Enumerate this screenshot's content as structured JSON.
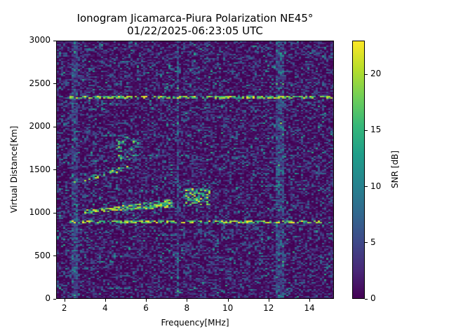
{
  "chart_data": {
    "type": "heatmap",
    "title": "Ionogram Jicamarca-Piura Polarization NE45°",
    "subtitle": "01/22/2025-06:23:05 UTC",
    "xlabel": "Frequency[MHz]",
    "ylabel": "Virtual Distance[Km]",
    "xlim": [
      1.6,
      15.2
    ],
    "ylim": [
      0,
      3000
    ],
    "xticks": [
      2,
      4,
      6,
      8,
      10,
      12,
      14
    ],
    "yticks": [
      0,
      500,
      1000,
      1500,
      2000,
      2500,
      3000
    ],
    "colorbar": {
      "label": "SNR [dB]",
      "range": [
        0,
        23
      ],
      "ticks": [
        0,
        5,
        10,
        15,
        20
      ],
      "colormap": "viridis"
    },
    "grid": false,
    "features": [
      {
        "name": "first-hop trace",
        "freq_range_mhz": [
          2.9,
          7.3
        ],
        "distance_km": [
          1020,
          1120
        ],
        "snr_db": "15-23"
      },
      {
        "name": "second-hop trace",
        "freq_range_mhz": [
          2.8,
          5.3
        ],
        "distance_km": [
          1380,
          1550
        ],
        "snr_db": "8-20"
      },
      {
        "name": "higher-order scatter",
        "freq_range_mhz": [
          4.5,
          5.6
        ],
        "distance_km": [
          1600,
          1900
        ],
        "snr_db": "8-20"
      },
      {
        "name": "echo cluster",
        "freq_range_mhz": [
          7.9,
          9.1
        ],
        "distance_km": [
          1100,
          1300
        ],
        "snr_db": "15-23"
      },
      {
        "name": "horizontal interference line",
        "freq_range_mhz": [
          2.2,
          15.2
        ],
        "distance_km": [
          2350,
          2350
        ],
        "snr_db": "20-23"
      },
      {
        "name": "horizontal interference line",
        "freq_range_mhz": [
          2.2,
          14.6
        ],
        "distance_km": [
          900,
          900
        ],
        "snr_db": "10-20"
      },
      {
        "name": "vertical noise band",
        "freq_range_mhz": [
          2.3,
          2.6
        ],
        "distance_km": [
          0,
          3000
        ],
        "snr_db": "3-10"
      },
      {
        "name": "vertical noise band",
        "freq_range_mhz": [
          12.3,
          12.7
        ],
        "distance_km": [
          0,
          3000
        ],
        "snr_db": "3-10"
      },
      {
        "name": "vertical noise line",
        "freq_range_mhz": [
          7.5,
          7.6
        ],
        "distance_km": [
          0,
          3000
        ],
        "snr_db": "2-6"
      }
    ],
    "background_snr_db": "0-4"
  }
}
